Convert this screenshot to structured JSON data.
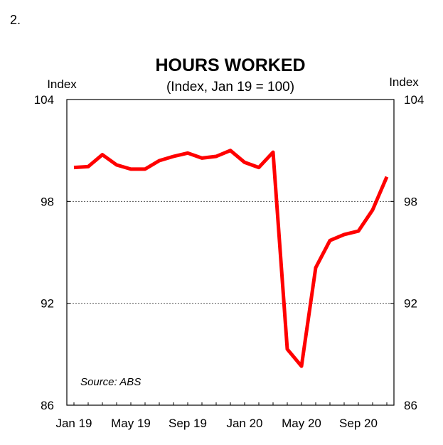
{
  "panel_number": "2.",
  "chart_data": {
    "type": "line",
    "title": "HOURS WORKED",
    "subtitle": "(Index, Jan 19 = 100)",
    "ylabel_left": "Index",
    "ylabel_right": "Index",
    "source": "Source: ABS",
    "ylim": [
      86,
      104
    ],
    "yticks": [
      86,
      92,
      98,
      104
    ],
    "grid": "dotted horizontal at 92 and 98",
    "xticks": [
      "Jan 19",
      "May 19",
      "Sep 19",
      "Jan 20",
      "May 20",
      "Sep 20"
    ],
    "x_months": [
      "Jan 19",
      "Feb 19",
      "Mar 19",
      "Apr 19",
      "May 19",
      "Jun 19",
      "Jul 19",
      "Aug 19",
      "Sep 19",
      "Oct 19",
      "Nov 19",
      "Dec 19",
      "Jan 20",
      "Feb 20",
      "Mar 20",
      "Apr 20",
      "May 20",
      "Jun 20",
      "Jul 20",
      "Aug 20",
      "Sep 20",
      "Oct 20",
      "Nov 20"
    ],
    "series": [
      {
        "color": "#ff0000",
        "values": [
          100.0,
          100.05,
          100.75,
          100.15,
          99.9,
          99.9,
          100.4,
          100.65,
          100.85,
          100.55,
          100.65,
          101.0,
          100.3,
          100.0,
          100.9,
          89.3,
          88.3,
          94.1,
          95.7,
          96.05,
          96.25,
          97.5,
          99.45
        ]
      }
    ]
  }
}
